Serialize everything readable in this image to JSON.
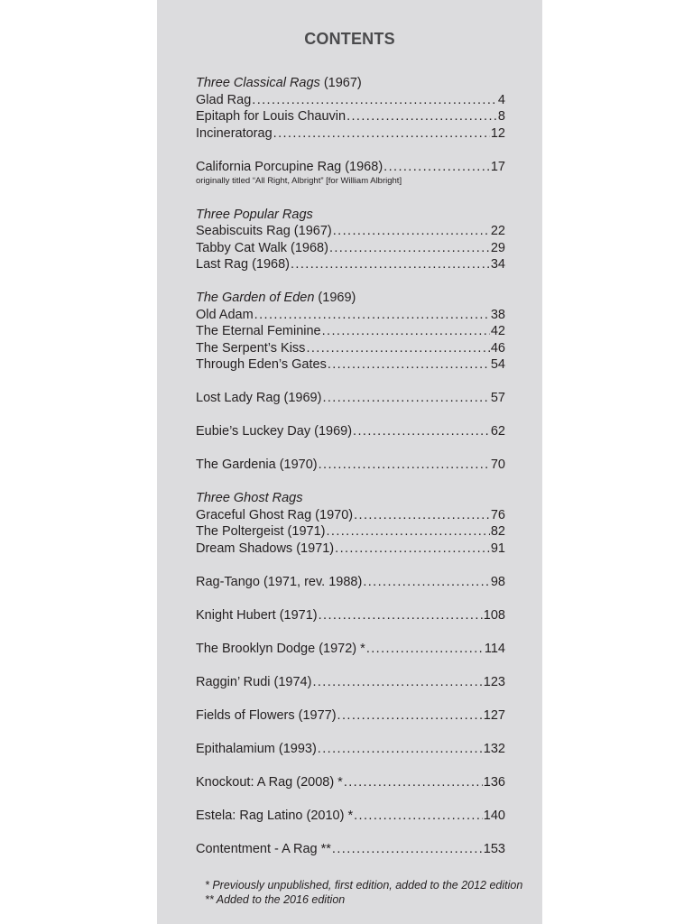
{
  "title": "CONTENTS",
  "groups": [
    {
      "heading_italic": "Three Classical Rags",
      "heading_plain": " (1967)",
      "items": [
        {
          "title": "Glad Rag",
          "page": "4"
        },
        {
          "title": "Epitaph for Louis Chauvin ",
          "page": "8"
        },
        {
          "title": "Incineratorag",
          "page": "12"
        }
      ]
    },
    {
      "items": [
        {
          "title": "California Porcupine Rag (1968)",
          "page": "17"
        }
      ],
      "note": "originally titled “All Right, Albright” [for William Albright]"
    },
    {
      "heading_italic": "Three Popular Rags",
      "heading_plain": "",
      "items": [
        {
          "title": "Seabiscuits Rag (1967) ",
          "page": "22"
        },
        {
          "title": "Tabby Cat Walk (1968)",
          "page": "29"
        },
        {
          "title": "Last Rag (1968)",
          "page": "34"
        }
      ]
    },
    {
      "heading_italic": "The Garden of Eden",
      "heading_plain": " (1969)",
      "items": [
        {
          "title": "Old Adam",
          "page": "38"
        },
        {
          "title": "The Eternal Feminine ",
          "page": "42"
        },
        {
          "title": "The Serpent’s Kiss ",
          "page": "46"
        },
        {
          "title": "Through Eden’s Gates",
          "page": "54"
        }
      ]
    },
    {
      "items": [
        {
          "title": "Lost Lady Rag (1969) ",
          "page": "57"
        }
      ]
    },
    {
      "items": [
        {
          "title": "Eubie’s Luckey Day (1969)",
          "page": "62"
        }
      ]
    },
    {
      "items": [
        {
          "title": "The Gardenia (1970)",
          "page": "70"
        }
      ]
    },
    {
      "heading_italic": "Three Ghost Rags",
      "heading_plain": "",
      "items": [
        {
          "title": "Graceful Ghost Rag (1970) ",
          "page": "76"
        },
        {
          "title": "The Poltergeist (1971) ",
          "page": "82"
        },
        {
          "title": "Dream Shadows (1971) ",
          "page": "91"
        }
      ]
    },
    {
      "items": [
        {
          "title": "Rag-Tango (1971, rev. 1988)",
          "page": "98"
        }
      ]
    },
    {
      "items": [
        {
          "title": "Knight Hubert (1971) ",
          "page": "108"
        }
      ]
    },
    {
      "items": [
        {
          "title": "The Brooklyn Dodge (1972) *",
          "page": "114"
        }
      ]
    },
    {
      "items": [
        {
          "title": "Raggin’ Rudi (1974) ",
          "page": "123"
        }
      ]
    },
    {
      "items": [
        {
          "title": "Fields of Flowers (1977)",
          "page": "127"
        }
      ]
    },
    {
      "items": [
        {
          "title": "Epithalamium (1993)",
          "page": "132"
        }
      ]
    },
    {
      "items": [
        {
          "title": "Knockout: A Rag (2008) *",
          "page": "136"
        }
      ]
    },
    {
      "items": [
        {
          "title": "Estela: Rag Latino (2010) * ",
          "page": "140"
        }
      ]
    },
    {
      "items": [
        {
          "title": "Contentment - A Rag ** ",
          "page": "153"
        }
      ]
    }
  ],
  "footnotes": [
    "* Previously unpublished, first edition, added to the 2012 edition",
    "** Added to the 2016 edition"
  ]
}
